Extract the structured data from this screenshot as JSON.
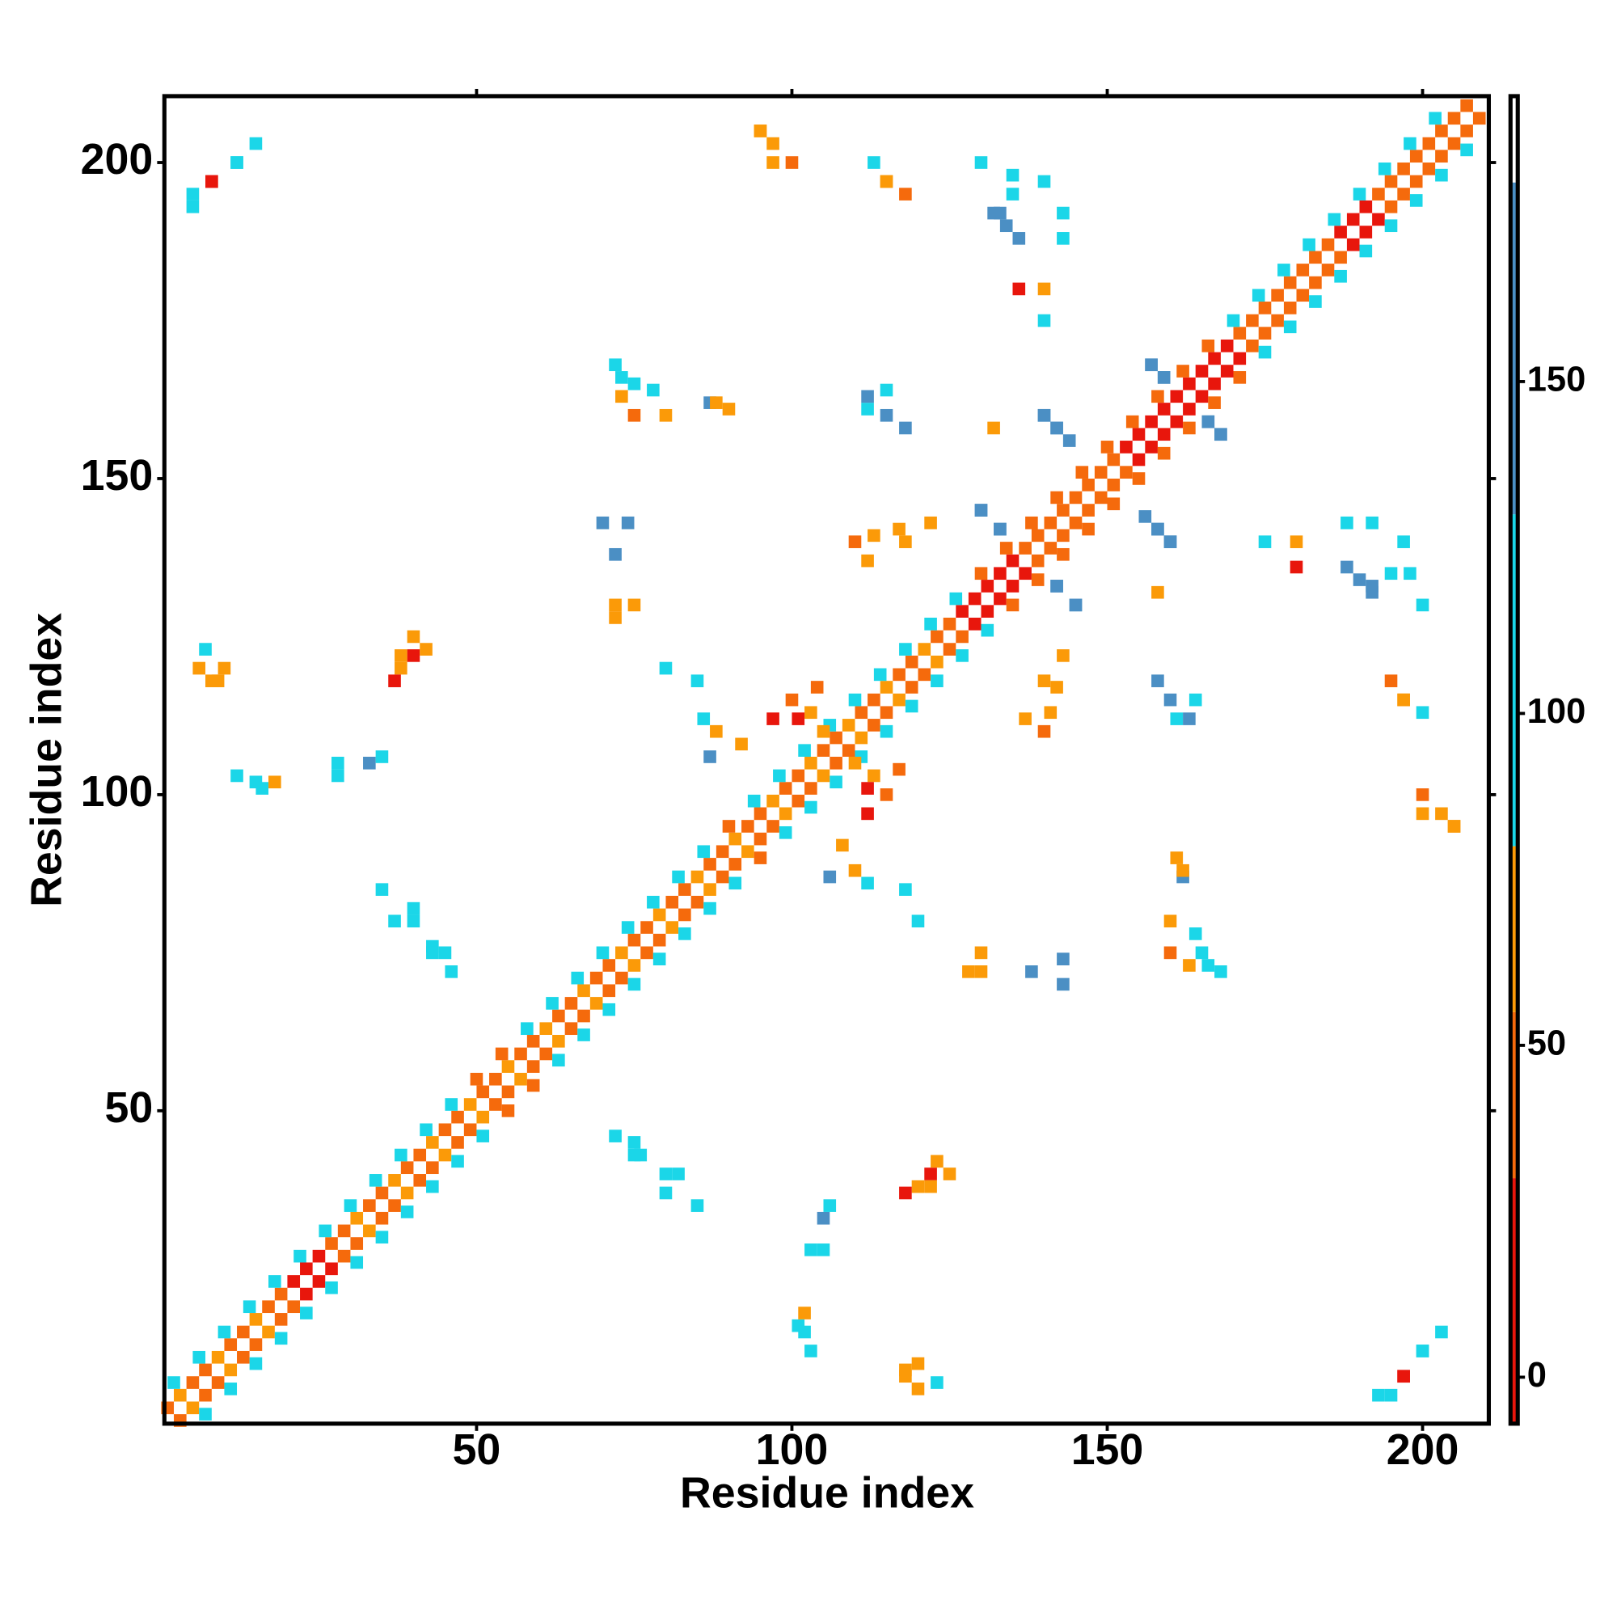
{
  "chart_data": {
    "type": "heatmap",
    "x_label": "Residue index",
    "y_label": "Residue index",
    "xlim": [
      0.5,
      210.5
    ],
    "ylim": [
      0.5,
      210.5
    ],
    "xticks": [
      50,
      100,
      150,
      200
    ],
    "yticks": [
      50,
      100,
      150,
      200
    ],
    "symmetric": true,
    "colorbar_lim": [
      -7,
      193
    ],
    "colorbar_ticks": [
      0,
      50,
      100,
      150
    ],
    "colorscale": [
      {
        "from": -7,
        "to": 30,
        "color": "#e8160c"
      },
      {
        "from": 30,
        "to": 55,
        "color": "#f56a0c"
      },
      {
        "from": 55,
        "to": 80,
        "color": "#fb9a08"
      },
      {
        "from": 80,
        "to": 130,
        "color": "#1bd6e8"
      },
      {
        "from": 130,
        "to": 180,
        "color": "#4b8fc4"
      },
      {
        "from": 180,
        "to": 193,
        "color": "#ffffff"
      }
    ],
    "x": [
      1,
      3,
      5,
      7,
      9,
      11,
      13,
      15,
      17,
      19,
      21,
      23,
      25,
      27,
      29,
      31,
      33,
      35,
      37,
      39,
      41,
      43,
      45,
      47,
      49,
      51,
      53,
      55,
      57,
      59,
      61,
      63,
      65,
      67,
      69,
      71,
      73,
      75,
      77,
      79,
      81,
      83,
      85,
      87,
      89,
      91,
      93,
      95,
      97,
      99,
      101,
      103,
      105,
      107,
      109,
      111,
      113,
      115,
      117,
      119,
      121,
      123,
      125,
      127,
      129,
      131,
      133,
      135,
      137,
      139,
      141,
      143,
      145,
      147,
      149,
      151,
      153,
      155,
      157,
      159,
      161,
      163,
      165,
      167,
      169,
      171,
      173,
      175,
      177,
      179,
      181,
      183,
      185,
      187,
      189,
      191,
      193,
      195,
      197,
      199,
      201,
      203,
      205,
      207,
      2,
      6,
      10,
      14,
      18,
      22,
      26,
      30,
      34,
      38,
      42,
      46,
      50,
      54,
      58,
      62,
      66,
      70,
      74,
      78,
      82,
      86,
      90,
      94,
      98,
      102,
      106,
      110,
      114,
      118,
      122,
      126,
      130,
      134,
      138,
      142,
      146,
      150,
      154,
      158,
      162,
      166,
      170,
      174,
      178,
      182,
      186,
      190,
      194,
      198,
      202,
      5,
      8,
      12,
      15,
      95,
      97,
      100,
      113,
      115,
      118,
      132,
      134,
      136,
      135,
      140,
      143,
      136,
      140,
      140,
      142,
      144,
      132,
      157,
      159,
      166,
      168,
      73,
      78,
      75,
      80,
      87,
      90,
      112,
      115,
      118,
      130,
      133,
      142,
      145,
      158,
      160,
      113,
      117,
      122,
      110,
      70,
      74,
      72,
      75,
      40,
      38,
      42,
      37,
      7,
      6,
      9,
      80,
      85,
      88,
      86,
      92,
      87,
      100,
      104,
      97,
      12,
      16,
      18,
      28,
      33,
      35,
      110,
      113,
      112,
      35,
      37,
      40,
      43,
      45,
      193,
      197,
      200,
      120,
      118,
      102,
      105,
      122,
      125,
      72,
      75,
      80,
      163,
      165,
      168,
      162,
      138,
      130,
      200,
      205,
      197,
      163,
      164,
      137,
      140,
      192,
      195,
      200,
      180,
      188
    ],
    "y": [
      3,
      5,
      7,
      9,
      11,
      13,
      15,
      17,
      19,
      21,
      23,
      25,
      27,
      29,
      31,
      33,
      35,
      37,
      39,
      41,
      43,
      45,
      47,
      49,
      51,
      53,
      55,
      57,
      59,
      61,
      63,
      65,
      67,
      69,
      71,
      73,
      75,
      77,
      79,
      81,
      83,
      85,
      87,
      89,
      91,
      93,
      95,
      97,
      99,
      101,
      103,
      105,
      107,
      109,
      111,
      113,
      115,
      117,
      119,
      121,
      123,
      125,
      127,
      129,
      131,
      133,
      135,
      137,
      139,
      141,
      143,
      145,
      147,
      149,
      151,
      153,
      155,
      157,
      159,
      161,
      163,
      165,
      167,
      169,
      171,
      173,
      175,
      177,
      179,
      181,
      183,
      185,
      187,
      189,
      191,
      193,
      195,
      197,
      199,
      201,
      203,
      205,
      207,
      209,
      7,
      11,
      15,
      19,
      23,
      27,
      31,
      35,
      39,
      43,
      47,
      51,
      55,
      59,
      63,
      67,
      71,
      75,
      79,
      83,
      87,
      91,
      95,
      99,
      103,
      107,
      111,
      115,
      119,
      123,
      127,
      131,
      135,
      139,
      143,
      147,
      151,
      155,
      159,
      163,
      167,
      171,
      175,
      179,
      183,
      187,
      191,
      195,
      199,
      203,
      207,
      195,
      197,
      200,
      203,
      205,
      203,
      200,
      200,
      197,
      195,
      192,
      190,
      188,
      198,
      197,
      192,
      180,
      175,
      160,
      158,
      156,
      158,
      168,
      166,
      159,
      157,
      166,
      164,
      160,
      160,
      162,
      161,
      161,
      160,
      158,
      145,
      142,
      133,
      130,
      142,
      140,
      141,
      142,
      143,
      140,
      143,
      143,
      128,
      130,
      122,
      120,
      123,
      118,
      123,
      120,
      118,
      120,
      118,
      110,
      112,
      108,
      106,
      115,
      117,
      112,
      103,
      101,
      102,
      103,
      105,
      106,
      105,
      103,
      101,
      85,
      80,
      82,
      76,
      75,
      5,
      8,
      12,
      10,
      8,
      15,
      28,
      38,
      40,
      46,
      43,
      40,
      73,
      75,
      72,
      88,
      72,
      72,
      97,
      95,
      115,
      112,
      115,
      112,
      118,
      133,
      135,
      130,
      140,
      143
    ],
    "values": [
      45,
      60,
      45,
      45,
      60,
      45,
      45,
      60,
      45,
      45,
      10,
      10,
      10,
      45,
      45,
      60,
      45,
      45,
      60,
      45,
      45,
      60,
      45,
      45,
      60,
      45,
      45,
      60,
      45,
      45,
      60,
      45,
      45,
      60,
      45,
      45,
      60,
      45,
      45,
      60,
      45,
      45,
      60,
      45,
      45,
      60,
      45,
      45,
      60,
      45,
      45,
      60,
      45,
      45,
      60,
      45,
      45,
      60,
      45,
      45,
      60,
      45,
      45,
      10,
      10,
      10,
      10,
      10,
      45,
      45,
      45,
      45,
      45,
      45,
      45,
      45,
      10,
      10,
      10,
      10,
      10,
      10,
      10,
      10,
      10,
      45,
      45,
      45,
      45,
      45,
      45,
      45,
      45,
      10,
      10,
      10,
      45,
      45,
      45,
      45,
      45,
      45,
      45,
      45,
      95,
      95,
      95,
      95,
      95,
      95,
      95,
      95,
      95,
      95,
      95,
      95,
      45,
      45,
      95,
      95,
      95,
      95,
      95,
      95,
      95,
      95,
      45,
      95,
      95,
      95,
      95,
      95,
      95,
      95,
      95,
      95,
      45,
      45,
      45,
      45,
      45,
      45,
      45,
      45,
      45,
      45,
      95,
      95,
      95,
      95,
      95,
      95,
      95,
      95,
      95,
      95,
      10,
      95,
      95,
      60,
      60,
      45,
      95,
      60,
      45,
      140,
      140,
      140,
      95,
      95,
      95,
      10,
      95,
      140,
      140,
      140,
      60,
      140,
      140,
      140,
      140,
      95,
      95,
      45,
      60,
      140,
      60,
      95,
      140,
      140,
      140,
      140,
      140,
      140,
      140,
      140,
      60,
      60,
      60,
      45,
      140,
      140,
      60,
      60,
      10,
      60,
      60,
      10,
      95,
      60,
      60,
      95,
      95,
      60,
      95,
      60,
      140,
      45,
      45,
      10,
      95,
      95,
      60,
      95,
      140,
      95,
      60,
      60,
      10,
      95,
      95,
      95,
      95,
      95,
      95,
      10,
      95,
      60,
      60,
      95,
      95,
      60,
      60,
      95,
      95,
      95,
      60,
      95,
      95,
      60,
      140,
      60,
      60,
      60,
      60,
      140,
      95,
      60,
      60,
      140,
      95,
      95,
      60,
      95
    ]
  }
}
